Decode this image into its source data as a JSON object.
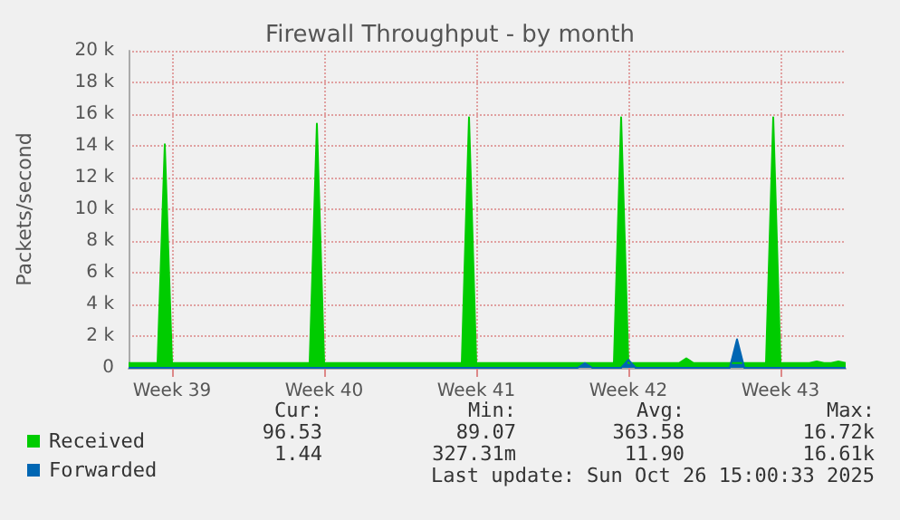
{
  "chart_data": {
    "type": "area",
    "title": "Firewall Throughput - by month",
    "ylabel": "Packets/second",
    "categories": [
      null,
      null,
      null,
      null,
      null,
      null,
      "Week 39",
      null,
      null,
      null,
      null,
      null,
      null,
      null,
      null,
      null,
      null,
      null,
      null,
      null,
      null,
      null,
      null,
      null,
      null,
      null,
      null,
      "Week 40",
      null,
      null,
      null,
      null,
      null,
      null,
      null,
      null,
      null,
      null,
      null,
      null,
      null,
      null,
      null,
      null,
      null,
      null,
      null,
      null,
      "Week 41",
      null,
      null,
      null,
      null,
      null,
      null,
      null,
      null,
      null,
      null,
      null,
      null,
      null,
      null,
      null,
      null,
      null,
      null,
      null,
      null,
      "Week 42",
      null,
      null,
      null,
      null,
      null,
      null,
      null,
      null,
      null,
      null,
      null,
      null,
      null,
      null,
      null,
      null,
      null,
      null,
      null,
      null,
      "Week 43",
      null,
      null,
      null,
      null,
      null,
      null,
      null,
      null,
      null
    ],
    "ylim": [
      0,
      20000
    ],
    "yticks": [
      0,
      {
        "value": 2000,
        "label": "2 k"
      },
      {
        "value": 4000,
        "label": "4 k"
      },
      {
        "value": 6000,
        "label": "6 k"
      },
      {
        "value": 8000,
        "label": "8 k"
      },
      {
        "value": 10000,
        "label": "10 k"
      },
      {
        "value": 12000,
        "label": "12 k"
      },
      {
        "value": 14000,
        "label": "14 k"
      },
      {
        "value": 16000,
        "label": "16 k"
      },
      {
        "value": 18000,
        "label": "18 k"
      },
      {
        "value": 20000,
        "label": "20 k"
      }
    ],
    "grid": true,
    "legend": "bottom left",
    "series": [
      {
        "name": "Received",
        "color": "#00cc00",
        "values": [
          300,
          300,
          300,
          300,
          300,
          14100,
          300,
          300,
          300,
          300,
          300,
          300,
          300,
          300,
          300,
          300,
          300,
          300,
          300,
          300,
          300,
          300,
          300,
          300,
          300,
          300,
          15400,
          300,
          300,
          300,
          300,
          300,
          300,
          300,
          300,
          300,
          300,
          300,
          300,
          300,
          300,
          300,
          300,
          300,
          300,
          300,
          300,
          15800,
          300,
          300,
          300,
          300,
          300,
          300,
          300,
          300,
          300,
          300,
          300,
          300,
          300,
          300,
          300,
          300,
          300,
          300,
          300,
          300,
          15800,
          300,
          300,
          300,
          300,
          300,
          300,
          300,
          300,
          600,
          300,
          300,
          300,
          300,
          300,
          300,
          300,
          300,
          300,
          300,
          300,
          15800,
          300,
          300,
          300,
          300,
          300,
          400,
          300,
          300,
          400,
          300
        ]
      },
      {
        "name": "Forwarded",
        "color": "#0066b3",
        "values": [
          0,
          0,
          0,
          0,
          0,
          0,
          0,
          0,
          0,
          0,
          0,
          0,
          0,
          0,
          0,
          0,
          0,
          0,
          0,
          0,
          0,
          0,
          0,
          0,
          0,
          0,
          0,
          0,
          0,
          0,
          0,
          0,
          0,
          0,
          0,
          0,
          0,
          0,
          0,
          0,
          0,
          0,
          0,
          0,
          0,
          0,
          0,
          0,
          0,
          0,
          0,
          0,
          0,
          0,
          0,
          0,
          0,
          0,
          0,
          0,
          0,
          0,
          0,
          300,
          0,
          0,
          0,
          0,
          0,
          500,
          0,
          0,
          0,
          0,
          0,
          0,
          0,
          0,
          0,
          0,
          0,
          0,
          0,
          0,
          1800,
          0,
          0,
          0,
          0,
          0,
          0,
          0,
          0,
          0,
          0,
          0,
          0,
          0,
          0,
          0
        ]
      }
    ],
    "annotations": [
      "Cur:",
      "Min:",
      "Avg:",
      "Max:",
      "96.53",
      "89.07",
      "363.58",
      "16.72k",
      "1.44",
      "327.31m",
      "11.90",
      "16.61k",
      "Last update: Sun Oct 26 15:00:33 2025"
    ]
  }
}
